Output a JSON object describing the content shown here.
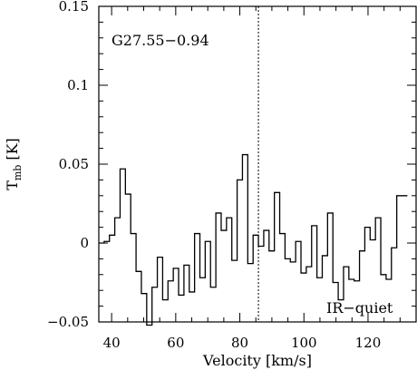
{
  "chart_data": {
    "type": "line",
    "step": true,
    "source_label": "G27.55−0.94",
    "class_label": "IR−quiet",
    "xlabel": "Velocity [km/s]",
    "ylabel_main": "T",
    "ylabel_sub": "mb",
    "ylabel_unit": "[K]",
    "xlim": [
      36,
      135
    ],
    "ylim": [
      -0.05,
      0.15
    ],
    "x_ticks": [
      40,
      60,
      80,
      100,
      120
    ],
    "x_tick_labels": [
      "40",
      "60",
      "80",
      "100",
      "120"
    ],
    "y_ticks": [
      -0.05,
      0,
      0.05,
      0.1,
      0.15
    ],
    "y_tick_labels": [
      "−0.05",
      "0",
      "0.05",
      "0.1",
      "0.15"
    ],
    "vline_x": 85.8,
    "grid": false,
    "channel_width": 1.66,
    "x_start": 36,
    "values": [
      0.0,
      0.001,
      0.005,
      0.016,
      0.047,
      0.031,
      0.006,
      -0.018,
      -0.032,
      -0.052,
      -0.028,
      -0.009,
      -0.036,
      -0.024,
      -0.016,
      -0.033,
      -0.014,
      -0.031,
      0.006,
      -0.022,
      0.001,
      -0.028,
      0.019,
      0.008,
      0.016,
      -0.011,
      0.04,
      0.056,
      -0.013,
      0.005,
      -0.002,
      0.008,
      -0.005,
      0.032,
      0.006,
      -0.01,
      -0.012,
      0.001,
      -0.019,
      -0.015,
      0.011,
      -0.022,
      -0.008,
      0.019,
      -0.025,
      -0.036,
      -0.015,
      -0.023,
      -0.024,
      -0.005,
      0.01,
      0.002,
      0.016,
      -0.02,
      -0.023,
      -0.003,
      0.03,
      0.03
    ]
  }
}
